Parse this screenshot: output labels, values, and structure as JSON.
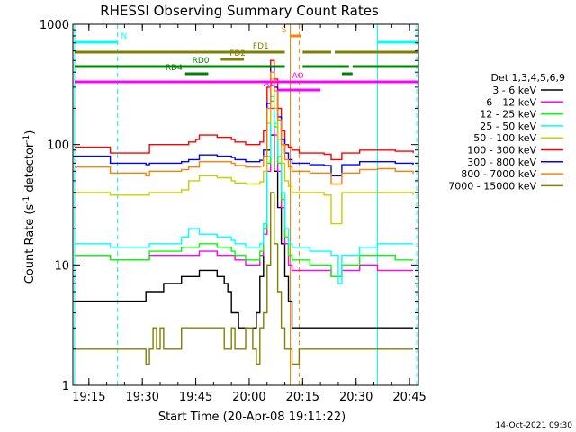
{
  "chart_data": {
    "type": "line",
    "title": "RHESSI Observing Summary Count Rates",
    "xlabel": "Start Time (20-Apr-08 19:11:22)",
    "ylabel": "Count Rate (s",
    "ylabel_sup1": "-1",
    "ylabel_mid": " detector",
    "ylabel_sup2": "-1",
    "ylabel_end": ")",
    "y_scale": "log",
    "ylim": [
      1,
      1000
    ],
    "xlim_minutes": [
      -0.5,
      96.5
    ],
    "x_ticks": [
      {
        "label": "19:15",
        "min": 4
      },
      {
        "label": "19:30",
        "min": 19
      },
      {
        "label": "19:45",
        "min": 34
      },
      {
        "label": "20:00",
        "min": 49
      },
      {
        "label": "20:15",
        "min": 64
      },
      {
        "label": "20:30",
        "min": 79
      },
      {
        "label": "20:45",
        "min": 94
      }
    ],
    "y_ticks": [
      {
        "label": "1",
        "value": 1
      },
      {
        "label": "10",
        "value": 10
      },
      {
        "label": "100",
        "value": 100
      },
      {
        "label": "1000",
        "value": 1000
      }
    ],
    "legend": {
      "position": "right",
      "title": "Det 1,3,4,5,6,9",
      "entries": [
        {
          "label": "3 - 6 keV",
          "color": "#000000"
        },
        {
          "label": "6 - 12 keV",
          "color": "#ff00ff"
        },
        {
          "label": "12 - 25 keV",
          "color": "#00ff00"
        },
        {
          "label": "25 - 50 keV",
          "color": "#00ffff"
        },
        {
          "label": "50 - 100 keV",
          "color": "#cccc00"
        },
        {
          "label": "100 - 300 keV",
          "color": "#ff0000"
        },
        {
          "label": "300 - 800 keV",
          "color": "#0000ff"
        },
        {
          "label": "800 - 7000 keV",
          "color": "#ff8000"
        },
        {
          "label": "7000 - 15000 keV",
          "color": "#808000"
        }
      ]
    },
    "series": [
      {
        "name": "3 - 6 keV",
        "color": "#000000",
        "x": [
          0,
          10,
          20,
          25,
          30,
          35,
          38,
          40,
          42,
          43,
          44,
          46,
          48,
          50,
          51,
          52,
          53,
          54,
          55,
          56,
          57,
          58,
          59,
          60,
          61,
          62,
          63,
          64,
          66,
          70,
          80,
          95
        ],
        "y": [
          5,
          5,
          6,
          7,
          8,
          9,
          9,
          8,
          7,
          6,
          4,
          3,
          3,
          3,
          4,
          8,
          20,
          90,
          120,
          60,
          30,
          15,
          8,
          5,
          3,
          3,
          3,
          3,
          3,
          3,
          3,
          3
        ]
      },
      {
        "name": "6 - 12 keV",
        "color": "#ff00ff",
        "x": [
          0,
          10,
          20,
          21,
          30,
          35,
          40,
          44,
          45,
          48,
          50,
          52,
          53,
          54,
          55,
          56,
          57,
          58,
          59,
          60,
          61,
          63,
          66,
          70,
          72,
          75,
          80,
          85,
          90,
          95
        ],
        "y": [
          12,
          11,
          11,
          12,
          12,
          13,
          12,
          12,
          11,
          10,
          10,
          12,
          18,
          60,
          200,
          120,
          60,
          30,
          15,
          10,
          9,
          9,
          9,
          9,
          8,
          9,
          10,
          9,
          9,
          9
        ]
      },
      {
        "name": "12 - 25 keV",
        "color": "#00ff00",
        "x": [
          0,
          10,
          20,
          21,
          30,
          35,
          40,
          44,
          45,
          48,
          50,
          52,
          53,
          54,
          55,
          56,
          57,
          58,
          59,
          60,
          61,
          63,
          66,
          70,
          72,
          75,
          80,
          85,
          90,
          95
        ],
        "y": [
          12,
          11,
          11,
          13,
          14,
          15,
          14,
          13,
          12,
          11,
          11,
          13,
          20,
          70,
          230,
          140,
          70,
          35,
          17,
          12,
          11,
          11,
          10,
          10,
          8,
          10,
          12,
          12,
          11,
          11
        ]
      },
      {
        "name": "25 - 50 keV",
        "color": "#00ffff",
        "x": [
          0,
          10,
          20,
          21,
          30,
          32,
          35,
          40,
          44,
          45,
          48,
          50,
          52,
          53,
          54,
          55,
          56,
          57,
          58,
          59,
          60,
          61,
          63,
          66,
          70,
          72,
          74,
          75,
          80,
          85,
          90,
          95
        ],
        "y": [
          15,
          14,
          14,
          15,
          17,
          20,
          18,
          17,
          16,
          15,
          14,
          14,
          15,
          22,
          80,
          250,
          150,
          80,
          40,
          20,
          15,
          14,
          14,
          13,
          13,
          12,
          7,
          12,
          14,
          15,
          15,
          15
        ]
      },
      {
        "name": "50 - 100 keV",
        "color": "#cccc00",
        "x": [
          0,
          10,
          20,
          21,
          30,
          32,
          35,
          40,
          44,
          45,
          48,
          50,
          52,
          53,
          54,
          55,
          56,
          57,
          58,
          59,
          60,
          61,
          63,
          66,
          70,
          72,
          75,
          80,
          85,
          90,
          95
        ],
        "y": [
          40,
          38,
          38,
          40,
          42,
          50,
          55,
          53,
          50,
          48,
          47,
          47,
          49,
          60,
          150,
          350,
          200,
          110,
          70,
          50,
          45,
          40,
          40,
          40,
          38,
          22,
          40,
          40,
          40,
          40,
          38
        ]
      },
      {
        "name": "100 - 300 keV",
        "color": "#ff0000",
        "x": [
          0,
          10,
          20,
          21,
          30,
          32,
          34,
          35,
          40,
          44,
          45,
          48,
          50,
          52,
          53,
          54,
          55,
          56,
          57,
          58,
          59,
          60,
          61,
          63,
          66,
          70,
          72,
          75,
          80,
          85,
          90,
          95
        ],
        "y": [
          95,
          85,
          85,
          100,
          100,
          105,
          110,
          120,
          115,
          110,
          105,
          100,
          100,
          105,
          130,
          300,
          500,
          350,
          200,
          130,
          100,
          95,
          90,
          85,
          85,
          83,
          75,
          85,
          90,
          90,
          88,
          85
        ]
      },
      {
        "name": "300 - 800 keV",
        "color": "#0000ff",
        "x": [
          0,
          10,
          20,
          21,
          30,
          32,
          35,
          40,
          44,
          45,
          48,
          50,
          52,
          53,
          54,
          55,
          56,
          57,
          58,
          59,
          60,
          61,
          63,
          66,
          70,
          72,
          75,
          80,
          85,
          90,
          95
        ],
        "y": [
          80,
          70,
          68,
          70,
          72,
          75,
          82,
          80,
          78,
          75,
          72,
          72,
          74,
          90,
          220,
          450,
          300,
          170,
          110,
          85,
          75,
          70,
          70,
          68,
          67,
          55,
          68,
          72,
          72,
          70,
          68
        ]
      },
      {
        "name": "800 - 7000 keV",
        "color": "#ff8000",
        "x": [
          0,
          10,
          20,
          21,
          30,
          32,
          35,
          40,
          44,
          45,
          48,
          50,
          52,
          53,
          54,
          55,
          56,
          57,
          58,
          59,
          60,
          61,
          63,
          66,
          70,
          72,
          75,
          80,
          85,
          90,
          95
        ],
        "y": [
          65,
          58,
          55,
          60,
          62,
          65,
          72,
          72,
          70,
          67,
          65,
          65,
          66,
          80,
          200,
          400,
          280,
          160,
          100,
          75,
          65,
          60,
          60,
          58,
          58,
          47,
          58,
          62,
          63,
          60,
          57
        ]
      },
      {
        "name": "7000 - 15000 keV",
        "color": "#808000",
        "x": [
          0,
          5,
          10,
          15,
          19,
          20,
          21,
          22,
          23,
          24,
          25,
          30,
          35,
          40,
          42,
          44,
          45,
          48,
          50,
          51,
          52,
          53,
          54,
          55,
          56,
          57,
          58,
          59,
          60,
          61,
          63,
          66,
          70,
          75,
          80,
          85,
          90,
          95
        ],
        "y": [
          2,
          2,
          2,
          2,
          2,
          1.5,
          2,
          3,
          2,
          3,
          2,
          3,
          3,
          3,
          2,
          3,
          2,
          3,
          2,
          1.5,
          3,
          4,
          10,
          40,
          15,
          6,
          3,
          2,
          2,
          1.5,
          2,
          2,
          2,
          2,
          2,
          2,
          2,
          2
        ]
      }
    ],
    "flag_bars": [
      {
        "label": "N",
        "color": "#00ffff",
        "segments": [
          [
            0,
            12
          ],
          [
            85,
            96.5
          ]
        ],
        "label_min": 13,
        "level": 1
      },
      {
        "label": "S",
        "color": "#ff8000",
        "segments": [
          [
            60.5,
            63.5
          ]
        ],
        "label_min": 58,
        "level": 0
      },
      {
        "label": "FD1",
        "color": "#808000",
        "segments": [
          [
            0,
            59
          ],
          [
            64,
            72
          ],
          [
            73,
            96.5
          ]
        ],
        "label_min": 50,
        "level": 2
      },
      {
        "label": "FD2",
        "color": "#808000",
        "segments": [
          [
            41,
            47.5
          ]
        ],
        "label_min": 43.5,
        "level": 3
      },
      {
        "label": "RD0",
        "color": "#008000",
        "segments": [
          [
            0,
            59
          ],
          [
            64,
            77
          ],
          [
            78,
            96.5
          ]
        ],
        "label_min": 33,
        "level": 4
      },
      {
        "label": "RD4",
        "color": "#008000",
        "segments": [
          [
            31,
            37.5
          ],
          [
            75,
            78
          ]
        ],
        "label_min": 25.5,
        "level": 5
      },
      {
        "label": "AO",
        "color": "#ff00ff",
        "segments": [
          [
            0,
            96.5
          ]
        ],
        "label_min": 61,
        "level": 6
      },
      {
        "label": "A1",
        "color": "#ff00ff",
        "segments": [
          [
            57,
            69
          ]
        ],
        "label_min": 53,
        "level": 7
      }
    ],
    "vertical_markers": [
      {
        "min": 0,
        "color": "#00ffff",
        "style": "solid"
      },
      {
        "min": 12,
        "color": "#00ffff",
        "style": "dashed"
      },
      {
        "min": 85,
        "color": "#00ffff",
        "style": "solid"
      },
      {
        "min": 96,
        "color": "#00ffff",
        "style": "dashed"
      },
      {
        "min": 60.5,
        "color": "#ff8000",
        "style": "solid"
      },
      {
        "min": 63,
        "color": "#ff8000",
        "style": "dashed"
      }
    ]
  },
  "footer": {
    "timestamp": "14-Oct-2021 09:30"
  }
}
